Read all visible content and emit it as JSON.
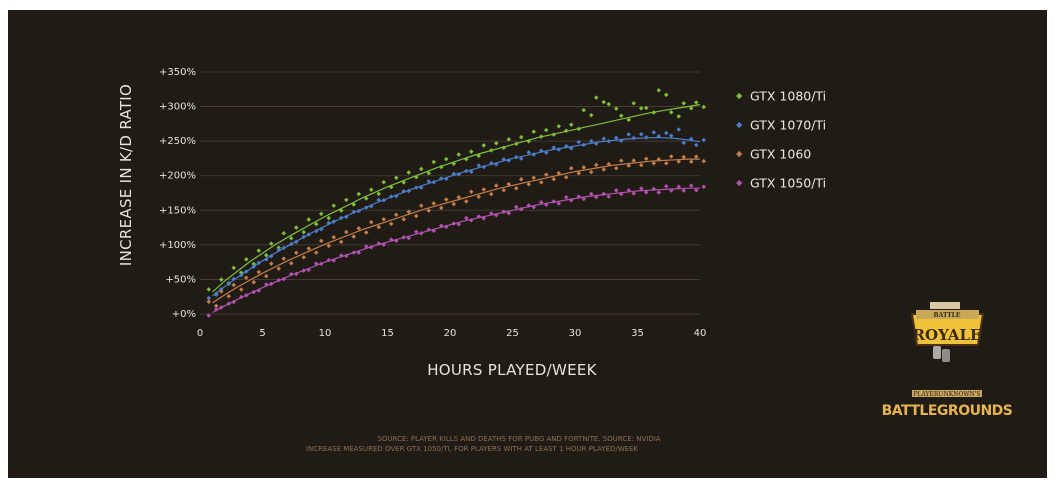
{
  "chart_data": {
    "type": "scatter",
    "title": "",
    "xlabel": "HOURS PLAYED/WEEK",
    "ylabel": "INCREASE IN K/D RATIO",
    "xlim": [
      0,
      40
    ],
    "ylim": [
      0,
      350
    ],
    "x_ticks": [
      0,
      5,
      10,
      15,
      20,
      25,
      30,
      35,
      40
    ],
    "y_ticks": [
      0,
      50,
      100,
      150,
      200,
      250,
      300,
      350
    ],
    "y_tick_labels": [
      "+0%",
      "+50%",
      "+100%",
      "+150%",
      "+200%",
      "+250%",
      "+300%",
      "+350%"
    ],
    "grid": "horizontal",
    "legend_position": "right",
    "x": [
      1,
      2,
      3,
      4,
      5,
      6,
      7,
      8,
      9,
      10,
      11,
      12,
      13,
      14,
      15,
      16,
      17,
      18,
      19,
      20,
      21,
      22,
      23,
      24,
      25,
      26,
      27,
      28,
      29,
      30,
      31,
      32,
      33,
      34,
      35,
      36,
      37,
      38,
      39,
      40
    ],
    "series": [
      {
        "name": "GTX 1080/Ti",
        "color": "#7cbf3a",
        "values": [
          32,
          48,
          62,
          76,
          88,
          100,
          112,
          122,
          133,
          143,
          152,
          162,
          170,
          178,
          186,
          194,
          201,
          208,
          215,
          221,
          227,
          233,
          239,
          244,
          249,
          254,
          259,
          263,
          268,
          272,
          290,
          310,
          300,
          285,
          300,
          295,
          320,
          290,
          300,
          303
        ],
        "trend": [
          32,
          48,
          62,
          76,
          88,
          100,
          111,
          121,
          131,
          141,
          150,
          159,
          168,
          176,
          184,
          191,
          198,
          205,
          212,
          218,
          224,
          230,
          235,
          240,
          245,
          250,
          255,
          259,
          263,
          267,
          271,
          275,
          279,
          283,
          287,
          291,
          294,
          297,
          300,
          303
        ]
      },
      {
        "name": "GTX 1070/Ti",
        "color": "#4a7dc8",
        "values": [
          26,
          40,
          53,
          65,
          77,
          88,
          98,
          108,
          118,
          127,
          136,
          144,
          152,
          160,
          167,
          174,
          181,
          187,
          193,
          199,
          205,
          210,
          215,
          220,
          225,
          229,
          233,
          237,
          241,
          244,
          247,
          250,
          253,
          255,
          257,
          259,
          260,
          262,
          250,
          248
        ],
        "trend": [
          26,
          40,
          53,
          65,
          77,
          88,
          98,
          108,
          118,
          127,
          136,
          144,
          152,
          160,
          167,
          174,
          181,
          187,
          193,
          199,
          205,
          210,
          215,
          220,
          225,
          229,
          233,
          237,
          240,
          243,
          246,
          249,
          251,
          253,
          254,
          255,
          255,
          254,
          252,
          249
        ]
      },
      {
        "name": "GTX 1060",
        "color": "#c27d48",
        "values": [
          16,
          28,
          39,
          49,
          59,
          68,
          77,
          85,
          93,
          101,
          108,
          115,
          122,
          128,
          134,
          140,
          146,
          152,
          157,
          162,
          167,
          172,
          177,
          182,
          186,
          190,
          194,
          198,
          202,
          206,
          209,
          212,
          215,
          217,
          219,
          221,
          222,
          223,
          224,
          224
        ],
        "trend": [
          16,
          28,
          39,
          49,
          59,
          68,
          77,
          85,
          93,
          101,
          108,
          115,
          122,
          128,
          134,
          140,
          146,
          152,
          157,
          162,
          167,
          172,
          177,
          182,
          186,
          190,
          194,
          198,
          202,
          206,
          209,
          212,
          215,
          217,
          219,
          221,
          222,
          223,
          224,
          224
        ]
      },
      {
        "name": "GTX 1050/Ti",
        "color": "#b052b0",
        "values": [
          2,
          12,
          21,
          30,
          38,
          46,
          54,
          61,
          68,
          75,
          81,
          87,
          93,
          99,
          104,
          109,
          114,
          119,
          124,
          129,
          134,
          138,
          142,
          146,
          150,
          154,
          158,
          161,
          164,
          167,
          170,
          172,
          174,
          176,
          178,
          179,
          180,
          181,
          182,
          182
        ],
        "trend": [
          2,
          12,
          21,
          30,
          38,
          46,
          54,
          61,
          68,
          75,
          81,
          87,
          93,
          99,
          104,
          109,
          114,
          119,
          124,
          129,
          134,
          138,
          142,
          146,
          150,
          154,
          158,
          161,
          164,
          167,
          170,
          172,
          174,
          176,
          178,
          179,
          180,
          181,
          182,
          182
        ]
      }
    ],
    "notes": [
      "SOURCE: PLAYER KILLS AND DEATHS FOR PUBG AND FORTNITE. SOURCE: NVIDIA",
      "INCREASE MEASURED OVER GTX 1050/TI, FOR PLAYERS WITH AT LEAST 1 HOUR PLAYED/WEEK"
    ]
  },
  "logos": {
    "battle_royale_top": "BATTLE",
    "battle_royale_main": "ROYALE",
    "pubg_top": "PLAYERUNKNOWN'S",
    "pubg_main": "BATTLEGROUNDS"
  }
}
